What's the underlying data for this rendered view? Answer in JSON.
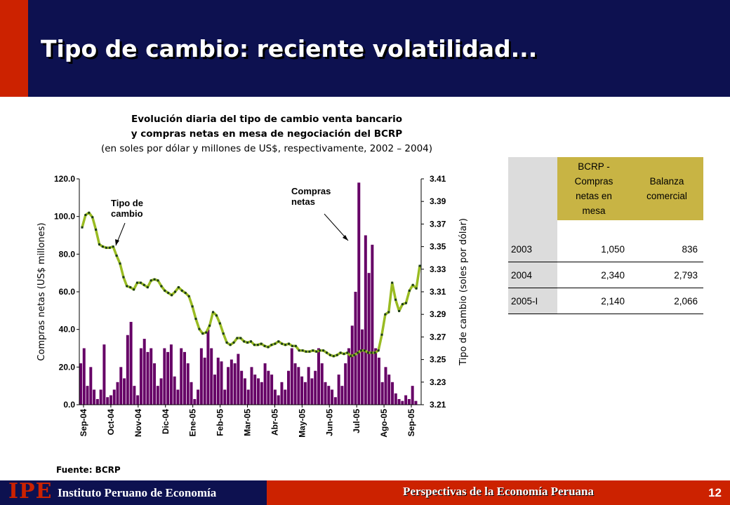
{
  "header": {
    "title": "Tipo de cambio: reciente volatilidad..."
  },
  "chart_heading": {
    "line1": "Evolución diaria del tipo de cambio venta bancario",
    "line2": "y compras netas en mesa de negociación del BCRP",
    "line3": "(en soles por dólar y millones de US$, respectivamente,  2002 – 2004)"
  },
  "colors": {
    "bars": "#660066",
    "line": "#99bb22",
    "markers": "#1a3a1a",
    "header": "#0d1150",
    "accent_red": "#cc2200",
    "table_header": "#c8b444",
    "table_label": "#dcdcdc"
  },
  "chart_data": {
    "type": "bar+line",
    "ylabel_left": "Compras netas (US$ millones)",
    "ylabel_right": "Tipo de cambio (soles por dólar)",
    "y_left_ticks": [
      "120.0",
      "100.0",
      "80.0",
      "60.0",
      "40.0",
      "20.0",
      "0.0"
    ],
    "y_right_ticks": [
      "3.41",
      "3.39",
      "3.37",
      "3.35",
      "3.33",
      "3.31",
      "3.29",
      "3.27",
      "3.25",
      "3.23",
      "3.21"
    ],
    "ylim_left": [
      0,
      120
    ],
    "ylim_right": [
      3.21,
      3.41
    ],
    "x_ticks": [
      "Sep-04",
      "Oct-04",
      "Nov-04",
      "Dic-04",
      "Ene-05",
      "Feb-05",
      "Mar-05",
      "Abr-05",
      "May-05",
      "Jun-05",
      "Jul-05",
      "Ago-05",
      "Sep-05"
    ],
    "annotations": {
      "exchange_rate": "Tipo de\ncambio",
      "net_purchases": "Compras\nnetas"
    },
    "series": [
      {
        "name": "Tipo de cambio",
        "type": "line",
        "values": [
          3.367,
          3.378,
          3.38,
          3.376,
          3.365,
          3.352,
          3.35,
          3.349,
          3.349,
          3.35,
          3.342,
          3.335,
          3.323,
          3.315,
          3.314,
          3.312,
          3.318,
          3.318,
          3.316,
          3.314,
          3.32,
          3.321,
          3.32,
          3.315,
          3.311,
          3.309,
          3.307,
          3.31,
          3.314,
          3.311,
          3.309,
          3.306,
          3.297,
          3.286,
          3.277,
          3.273,
          3.274,
          3.28,
          3.292,
          3.289,
          3.282,
          3.273,
          3.265,
          3.263,
          3.265,
          3.269,
          3.269,
          3.266,
          3.265,
          3.266,
          3.263,
          3.263,
          3.264,
          3.262,
          3.261,
          3.263,
          3.264,
          3.266,
          3.264,
          3.263,
          3.264,
          3.262,
          3.262,
          3.258,
          3.258,
          3.257,
          3.257,
          3.258,
          3.257,
          3.258,
          3.258,
          3.256,
          3.254,
          3.253,
          3.254,
          3.256,
          3.255,
          3.256,
          3.253,
          3.254,
          3.256,
          3.258,
          3.258,
          3.256,
          3.256,
          3.256,
          3.258,
          3.272,
          3.29,
          3.292,
          3.318,
          3.303,
          3.293,
          3.299,
          3.3,
          3.311,
          3.316,
          3.313,
          3.333
        ]
      },
      {
        "name": "Compras netas",
        "type": "bar",
        "values": [
          22,
          30,
          10,
          20,
          8,
          3,
          8,
          32,
          4,
          5,
          8,
          12,
          20,
          14,
          37,
          44,
          10,
          5,
          30,
          35,
          28,
          30,
          22,
          10,
          14,
          30,
          28,
          32,
          15,
          8,
          30,
          28,
          22,
          12,
          3,
          8,
          30,
          25,
          40,
          30,
          16,
          25,
          23,
          8,
          20,
          24,
          22,
          27,
          18,
          14,
          8,
          20,
          16,
          14,
          12,
          22,
          18,
          16,
          8,
          5,
          12,
          8,
          18,
          30,
          22,
          20,
          15,
          12,
          20,
          14,
          18,
          30,
          22,
          12,
          10,
          8,
          4,
          16,
          10,
          22,
          30,
          42,
          60,
          118,
          40,
          90,
          70,
          85,
          30,
          25,
          12,
          20,
          16,
          12,
          6,
          3,
          2,
          5,
          3,
          10,
          2,
          0
        ]
      }
    ]
  },
  "source": "Fuente: BCRP",
  "table": {
    "headers": [
      "BCRP -\nCompras\nnetas en\nmesa",
      "Balanza\ncomercial"
    ],
    "rows": [
      {
        "label": "2003",
        "values": [
          "1,050",
          "836"
        ]
      },
      {
        "label": "2004",
        "values": [
          "2,340",
          "2,793"
        ]
      },
      {
        "label": "2005-I",
        "values": [
          "2,140",
          "2,066"
        ]
      }
    ]
  },
  "footer": {
    "logo": "IPE",
    "institute": "Instituto Peruano de Economía",
    "center": "Perspectivas de la Economía Peruana",
    "page": "12"
  }
}
